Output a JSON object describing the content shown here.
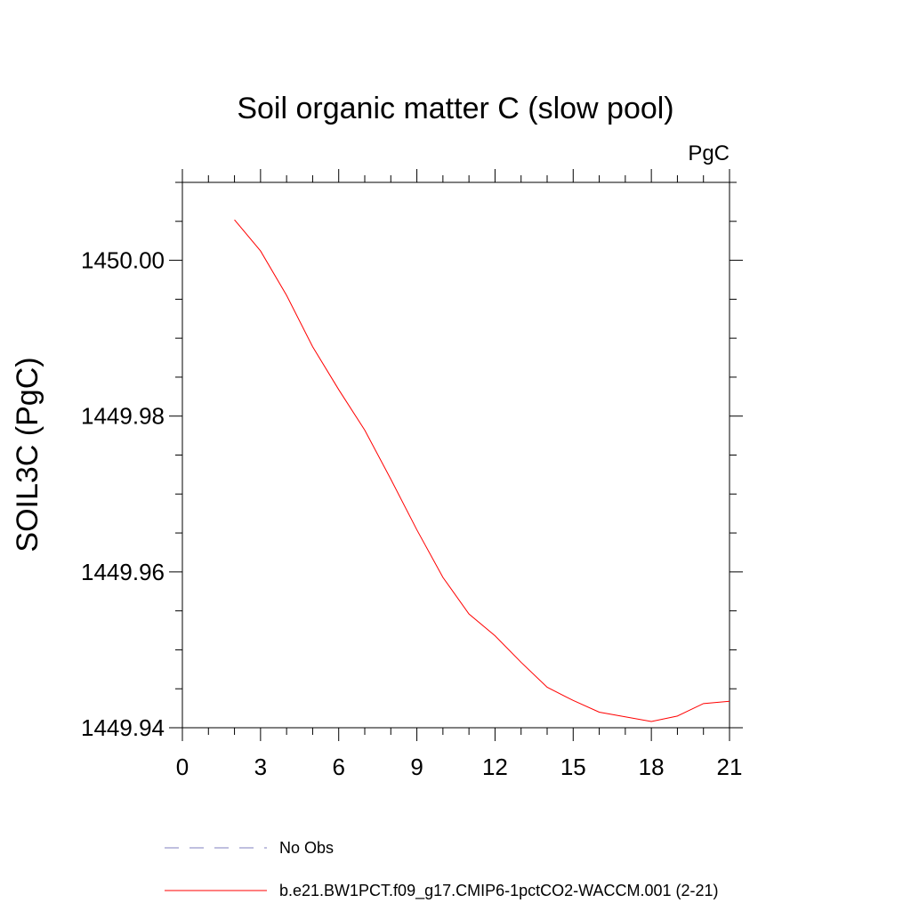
{
  "chart_data": {
    "type": "line",
    "title": "Soil organic matter C (slow pool)",
    "units": "PgC",
    "ylabel": "SOIL3C  (PgC)",
    "xlabel": "",
    "xlim": [
      0,
      21
    ],
    "ylim": [
      1449.94,
      1450.01
    ],
    "x_ticks": [
      0,
      3,
      6,
      9,
      12,
      15,
      18,
      21
    ],
    "y_ticks": [
      1449.94,
      1449.96,
      1449.98,
      1450.0
    ],
    "y_tick_labels": [
      "1449.94",
      "1449.96",
      "1449.98",
      "1450.00"
    ],
    "grid": false,
    "legend_position": "bottom",
    "series": [
      {
        "name": "No Obs",
        "style": "dashed",
        "color": "#7f7fbf",
        "x": [],
        "y": []
      },
      {
        "name": "b.e21.BW1PCT.f09_g17.CMIP6-1pctCO2-WACCM.001 (2-21)",
        "style": "solid",
        "color": "#ff0000",
        "x": [
          2,
          3,
          4,
          5,
          6,
          7,
          8,
          9,
          10,
          11,
          12,
          13,
          14,
          15,
          16,
          17,
          18,
          19,
          20,
          21
        ],
        "y": [
          1450.0052,
          1450.0012,
          1449.9955,
          1449.9889,
          1449.9834,
          1449.9782,
          1449.9719,
          1449.9654,
          1449.9593,
          1449.9546,
          1449.9518,
          1449.9484,
          1449.9452,
          1449.9435,
          1449.942,
          1449.9414,
          1449.9408,
          1449.9415,
          1449.9431,
          1449.9434
        ]
      }
    ]
  }
}
